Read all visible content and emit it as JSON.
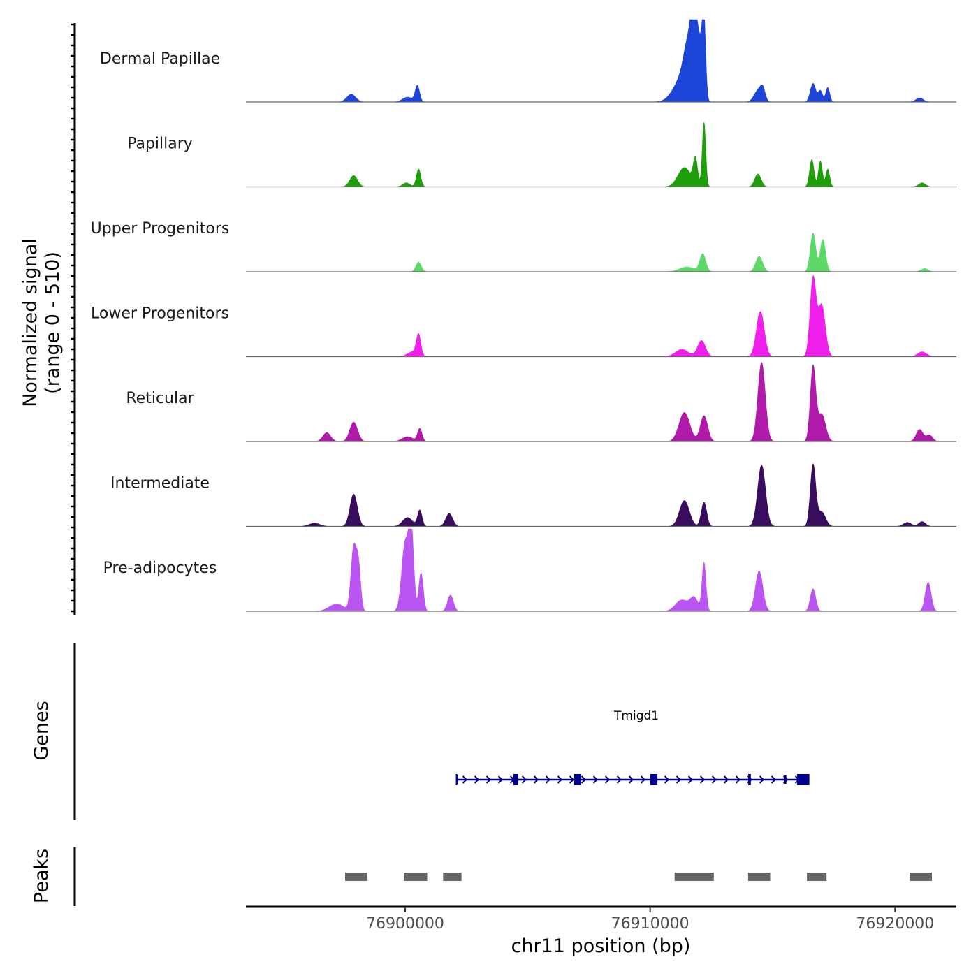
{
  "chart_data": {
    "type": "area",
    "title": "",
    "xlabel": "chr11 position (bp)",
    "ylabel_line1": "Normalized signal",
    "ylabel_line2": "(range 0 - 510)",
    "chromosome": "chr11",
    "xlim": [
      76893500,
      76922500
    ],
    "ylim": [
      0,
      510
    ],
    "x_ticks": [
      76900000,
      76910000,
      76920000
    ],
    "x_tick_labels": [
      "76900000",
      "76910000",
      "76920000"
    ],
    "tracks": [
      {
        "name": "Dermal Papillae",
        "color": "#1c45d8",
        "peaks": [
          {
            "center": 76897800,
            "height": 48,
            "width": 180
          },
          {
            "center": 76900100,
            "height": 30,
            "width": 200
          },
          {
            "center": 76900500,
            "height": 100,
            "width": 90
          },
          {
            "center": 76911300,
            "height": 140,
            "width": 350
          },
          {
            "center": 76911600,
            "height": 300,
            "width": 200
          },
          {
            "center": 76911800,
            "height": 440,
            "width": 110
          },
          {
            "center": 76912050,
            "height": 310,
            "width": 120
          },
          {
            "center": 76912200,
            "height": 420,
            "width": 70
          },
          {
            "center": 76914400,
            "height": 70,
            "width": 160
          },
          {
            "center": 76914600,
            "height": 70,
            "width": 100
          },
          {
            "center": 76916650,
            "height": 115,
            "width": 110
          },
          {
            "center": 76916950,
            "height": 70,
            "width": 90
          },
          {
            "center": 76917250,
            "height": 90,
            "width": 80
          },
          {
            "center": 76921000,
            "height": 25,
            "width": 150
          }
        ]
      },
      {
        "name": "Papillary",
        "color": "#1e9e09",
        "peaks": [
          {
            "center": 76897900,
            "height": 70,
            "width": 160
          },
          {
            "center": 76900050,
            "height": 25,
            "width": 150
          },
          {
            "center": 76900550,
            "height": 110,
            "width": 90
          },
          {
            "center": 76911400,
            "height": 120,
            "width": 260
          },
          {
            "center": 76911850,
            "height": 160,
            "width": 90
          },
          {
            "center": 76912200,
            "height": 400,
            "width": 70
          },
          {
            "center": 76914400,
            "height": 80,
            "width": 130
          },
          {
            "center": 76916600,
            "height": 170,
            "width": 90
          },
          {
            "center": 76916950,
            "height": 160,
            "width": 80
          },
          {
            "center": 76917250,
            "height": 110,
            "width": 80
          },
          {
            "center": 76921100,
            "height": 25,
            "width": 140
          }
        ]
      },
      {
        "name": "Upper Progenitors",
        "color": "#5fd86a",
        "peaks": [
          {
            "center": 76900550,
            "height": 60,
            "width": 110
          },
          {
            "center": 76911500,
            "height": 30,
            "width": 300
          },
          {
            "center": 76912150,
            "height": 110,
            "width": 120
          },
          {
            "center": 76914450,
            "height": 95,
            "width": 140
          },
          {
            "center": 76916650,
            "height": 240,
            "width": 110
          },
          {
            "center": 76917050,
            "height": 200,
            "width": 110
          },
          {
            "center": 76921200,
            "height": 20,
            "width": 140
          }
        ]
      },
      {
        "name": "Lower Progenitors",
        "color": "#f020ec",
        "peaks": [
          {
            "center": 76900300,
            "height": 30,
            "width": 200
          },
          {
            "center": 76900550,
            "height": 130,
            "width": 90
          },
          {
            "center": 76911300,
            "height": 45,
            "width": 260
          },
          {
            "center": 76912100,
            "height": 100,
            "width": 160
          },
          {
            "center": 76914500,
            "height": 280,
            "width": 160
          },
          {
            "center": 76916650,
            "height": 480,
            "width": 120
          },
          {
            "center": 76917000,
            "height": 320,
            "width": 150
          },
          {
            "center": 76921100,
            "height": 30,
            "width": 180
          }
        ]
      },
      {
        "name": "Reticular",
        "color": "#b01aa8",
        "peaks": [
          {
            "center": 76896800,
            "height": 55,
            "width": 160
          },
          {
            "center": 76897900,
            "height": 120,
            "width": 160
          },
          {
            "center": 76900100,
            "height": 30,
            "width": 220
          },
          {
            "center": 76900600,
            "height": 80,
            "width": 90
          },
          {
            "center": 76911400,
            "height": 180,
            "width": 220
          },
          {
            "center": 76912200,
            "height": 160,
            "width": 150
          },
          {
            "center": 76914550,
            "height": 490,
            "width": 150
          },
          {
            "center": 76916650,
            "height": 460,
            "width": 110
          },
          {
            "center": 76917000,
            "height": 170,
            "width": 160
          },
          {
            "center": 76921000,
            "height": 75,
            "width": 140
          },
          {
            "center": 76921400,
            "height": 40,
            "width": 130
          }
        ]
      },
      {
        "name": "Intermediate",
        "color": "#3a0c5e",
        "peaks": [
          {
            "center": 76896300,
            "height": 20,
            "width": 220
          },
          {
            "center": 76897900,
            "height": 200,
            "width": 150
          },
          {
            "center": 76900100,
            "height": 55,
            "width": 200
          },
          {
            "center": 76900600,
            "height": 100,
            "width": 90
          },
          {
            "center": 76901800,
            "height": 80,
            "width": 140
          },
          {
            "center": 76911400,
            "height": 160,
            "width": 200
          },
          {
            "center": 76912200,
            "height": 150,
            "width": 110
          },
          {
            "center": 76914550,
            "height": 380,
            "width": 160
          },
          {
            "center": 76916650,
            "height": 380,
            "width": 110
          },
          {
            "center": 76917000,
            "height": 90,
            "width": 160
          },
          {
            "center": 76920500,
            "height": 25,
            "width": 160
          },
          {
            "center": 76921100,
            "height": 30,
            "width": 140
          }
        ]
      },
      {
        "name": "Pre-adipocytes",
        "color": "#bb55f2",
        "peaks": [
          {
            "center": 76897200,
            "height": 45,
            "width": 300
          },
          {
            "center": 76897900,
            "height": 390,
            "width": 110
          },
          {
            "center": 76898100,
            "height": 260,
            "width": 90
          },
          {
            "center": 76900000,
            "height": 420,
            "width": 140
          },
          {
            "center": 76900250,
            "height": 500,
            "width": 100
          },
          {
            "center": 76900650,
            "height": 240,
            "width": 90
          },
          {
            "center": 76901850,
            "height": 100,
            "width": 120
          },
          {
            "center": 76911300,
            "height": 70,
            "width": 260
          },
          {
            "center": 76911800,
            "height": 80,
            "width": 160
          },
          {
            "center": 76912200,
            "height": 300,
            "width": 80
          },
          {
            "center": 76914450,
            "height": 250,
            "width": 150
          },
          {
            "center": 76916650,
            "height": 140,
            "width": 110
          },
          {
            "center": 76921350,
            "height": 180,
            "width": 120
          }
        ]
      }
    ],
    "genes": {
      "title": "Genes",
      "color": "#00008b",
      "items": [
        {
          "name": "Tmigd1",
          "start": 76902100,
          "end": 76916500,
          "strand": "+",
          "exons": [
            {
              "start": 76902080,
              "end": 76902120,
              "thick": false
            },
            {
              "start": 76904420,
              "end": 76904620,
              "thick": true
            },
            {
              "start": 76906900,
              "end": 76907180,
              "thick": true
            },
            {
              "start": 76910000,
              "end": 76910300,
              "thick": true
            },
            {
              "start": 76914000,
              "end": 76914110,
              "thick": true
            },
            {
              "start": 76915480,
              "end": 76915520,
              "thick": false
            },
            {
              "start": 76916000,
              "end": 76916500,
              "thick": true
            }
          ]
        }
      ]
    },
    "peaks": {
      "title": "Peaks",
      "color": "#666666",
      "regions": [
        {
          "start": 76897550,
          "end": 76898450
        },
        {
          "start": 76899950,
          "end": 76900900
        },
        {
          "start": 76901550,
          "end": 76902300
        },
        {
          "start": 76911000,
          "end": 76912600
        },
        {
          "start": 76914000,
          "end": 76914900
        },
        {
          "start": 76916400,
          "end": 76917200
        },
        {
          "start": 76920600,
          "end": 76921500
        }
      ]
    }
  }
}
